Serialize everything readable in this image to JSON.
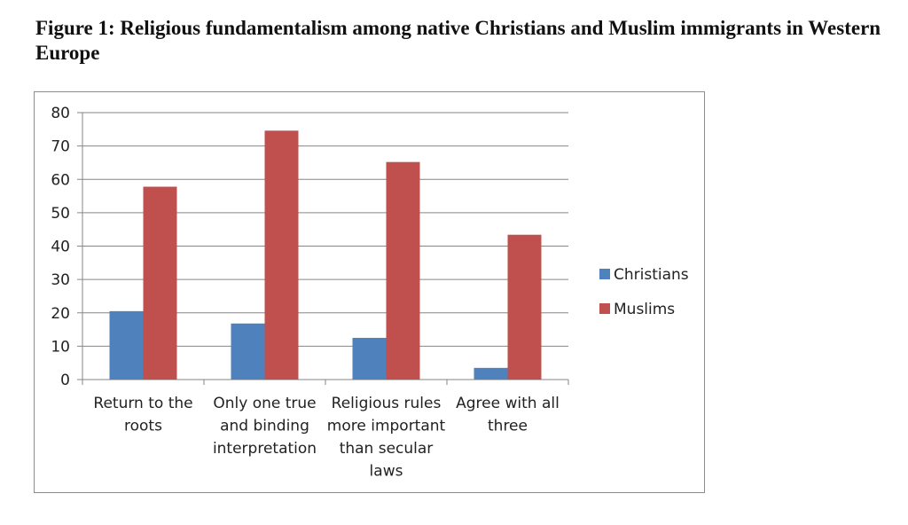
{
  "figure": {
    "title": "Figure 1: Religious fundamentalism among native Christians and Muslim immigrants in Western Europe"
  },
  "chart_data": {
    "type": "bar",
    "title": "",
    "xlabel": "",
    "ylabel": "",
    "categories": [
      [
        "Return to the",
        "roots"
      ],
      [
        "Only one true",
        "and binding",
        "interpretation"
      ],
      [
        "Religious rules",
        "more important",
        "than secular",
        "laws"
      ],
      [
        "Agree with all",
        "three"
      ]
    ],
    "series": [
      {
        "name": "Christians",
        "color": "#4f81bd",
        "values": [
          20.5,
          16.8,
          12.5,
          3.5
        ]
      },
      {
        "name": "Muslims",
        "color": "#c0504d",
        "values": [
          57.8,
          74.6,
          65.2,
          43.4
        ]
      }
    ],
    "ylim": [
      0,
      80
    ],
    "yticks": [
      0,
      10,
      20,
      30,
      40,
      50,
      60,
      70,
      80
    ],
    "grid": true,
    "legend": "right"
  }
}
